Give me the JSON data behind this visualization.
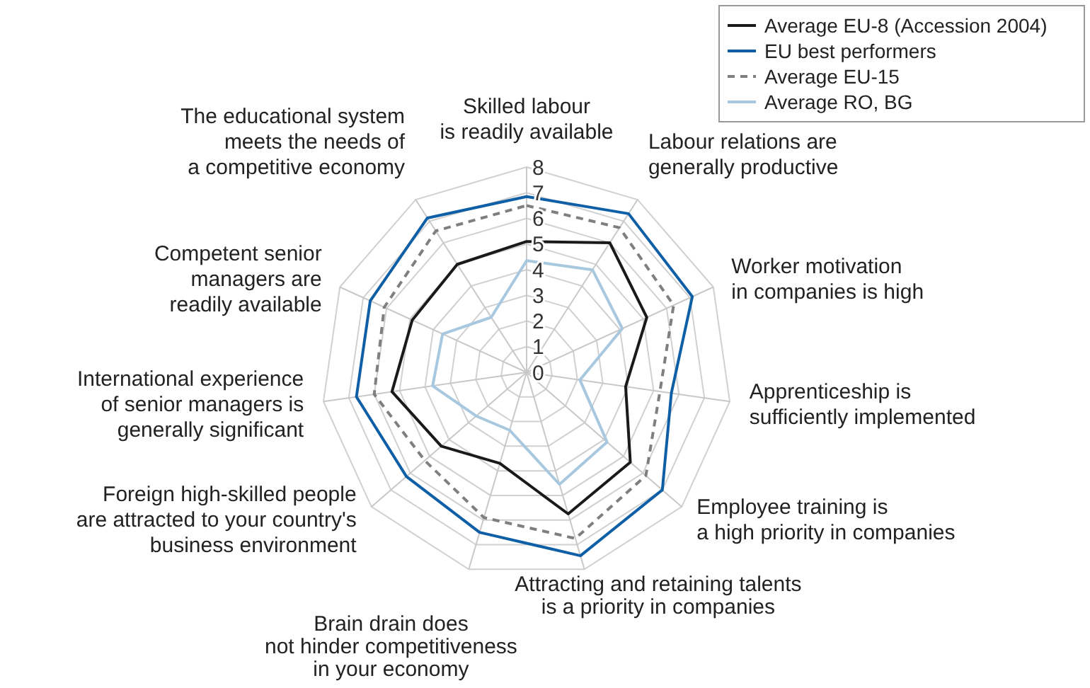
{
  "chart_data": {
    "type": "radar",
    "categories": [
      "Skilled labour\nis readily available",
      "Labour relations are\ngenerally productive",
      "Worker motivation\nin companies is high",
      "Apprenticeship is\nsufficiently implemented",
      "Employee training is\na high priority in companies",
      "Attracting and retaining talents\nis a priority in companies",
      "Brain drain does\nnot hinder competitiveness\nin your economy",
      "Foreign high-skilled people\nare attracted to your country's\nbusiness environment",
      "International experience\nof senior managers is\ngenerally significant",
      "Competent senior\nmanagers are\nreadily available",
      "The educational system\nmeets the needs of\na competitive economy"
    ],
    "series": [
      {
        "name": "Average EU-8 (Accession 2004)",
        "color": "#1a1a1a",
        "line_style": "solid",
        "values": [
          5.1,
          6.0,
          5.15,
          3.9,
          5.35,
          5.75,
          3.7,
          4.4,
          5.3,
          4.9,
          5.0
        ]
      },
      {
        "name": "EU best performers",
        "color": "#0e5fa6",
        "line_style": "solid",
        "values": [
          6.85,
          7.35,
          7.1,
          5.7,
          7.0,
          7.45,
          6.5,
          6.2,
          6.7,
          6.7,
          7.15
        ]
      },
      {
        "name": "Average EU-15",
        "color": "#7f7f7f",
        "line_style": "dashed",
        "values": [
          6.5,
          6.7,
          6.3,
          5.25,
          6.15,
          6.75,
          5.9,
          5.25,
          6.0,
          6.1,
          6.55
        ]
      },
      {
        "name": "Average RO, BG",
        "color": "#a8c8e0",
        "line_style": "solid",
        "values": [
          4.35,
          4.75,
          4.1,
          2.1,
          4.15,
          4.55,
          2.35,
          2.6,
          3.7,
          3.6,
          2.55
        ]
      }
    ],
    "ylim": [
      0,
      8
    ],
    "yticks": [
      0,
      1,
      2,
      3,
      4,
      5,
      6,
      7,
      8
    ],
    "grid": true,
    "legend": "top right"
  }
}
